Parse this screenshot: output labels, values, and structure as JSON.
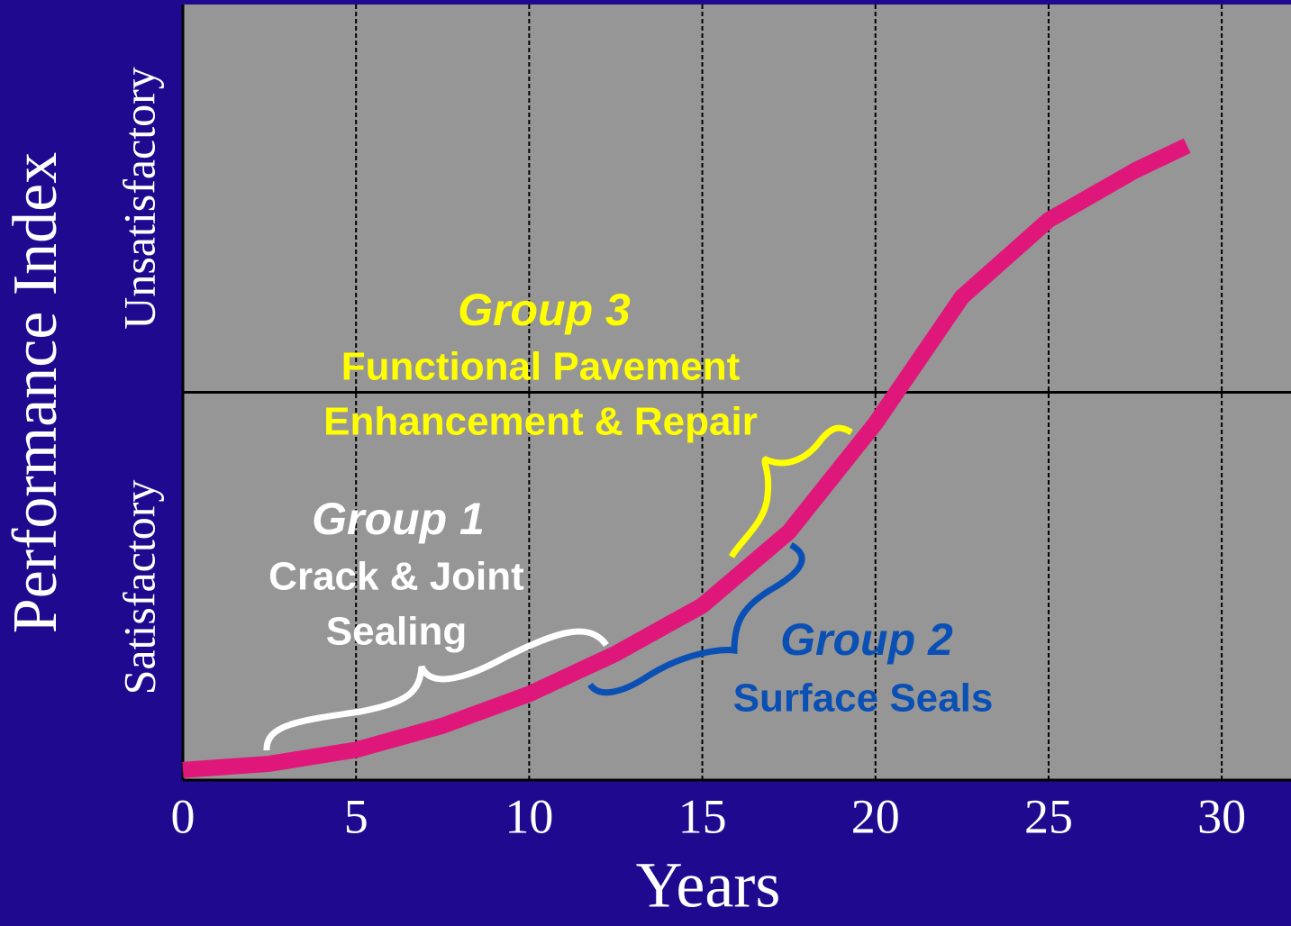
{
  "chart_data": {
    "type": "line",
    "xlabel": "Years",
    "ylabel": "Performance Index",
    "region_labels": [
      "Satisfactory",
      "Unsatisfactory"
    ],
    "x": [
      0,
      2.5,
      5,
      7.5,
      10,
      12.5,
      15,
      17.5,
      20,
      22.5,
      25,
      27.5,
      29
    ],
    "series": [
      {
        "color": "#e0177a",
        "values": [
          1.3,
          2.1,
          3.9,
          7.0,
          11.1,
          16.3,
          22.5,
          32.0,
          46.0,
          62.3,
          72.2,
          78.6,
          81.8
        ]
      }
    ],
    "xlim": [
      0,
      32
    ],
    "xticks": [
      0,
      5,
      10,
      15,
      20,
      25,
      30
    ],
    "ylim": [
      0,
      100
    ],
    "threshold": 50,
    "grid": true,
    "annotations": [
      {
        "title": "Group 1",
        "lines": [
          "Crack & Joint",
          "Sealing"
        ],
        "color": "#ffffff"
      },
      {
        "title": "Group 2",
        "lines": [
          "Surface Seals"
        ],
        "color": "#0a50b4"
      },
      {
        "title": "Group 3",
        "lines": [
          "Functional Pavement",
          "Enhancement & Repair"
        ],
        "color": "#ffff00"
      }
    ]
  }
}
